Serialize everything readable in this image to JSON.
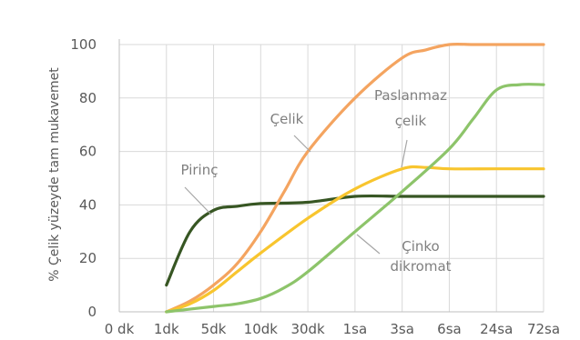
{
  "chart_data": {
    "type": "line",
    "title": "",
    "xlabel": "",
    "ylabel": "% Çelik yüzeyde tam mukavemet",
    "categories": [
      "0 dk",
      "1dk",
      "5dk",
      "10dk",
      "30dk",
      "1sa",
      "3sa",
      "6sa",
      "24sa",
      "72sa"
    ],
    "yticks": [
      "0",
      "20",
      "40",
      "60",
      "80",
      "100"
    ],
    "ylim": [
      0,
      100
    ],
    "grid": true,
    "legend": "none",
    "series": [
      {
        "name": "Pirinç",
        "color": "#375623",
        "points": [
          [
            1,
            10
          ],
          [
            1.5,
            30
          ],
          [
            2,
            38
          ],
          [
            2.5,
            39.5
          ],
          [
            3,
            40.5
          ],
          [
            4,
            41
          ],
          [
            5,
            43.2
          ],
          [
            6,
            43.2
          ],
          [
            7,
            43.2
          ],
          [
            8,
            43.2
          ],
          [
            9,
            43.2
          ]
        ]
      },
      {
        "name": "Çelik",
        "color": "#F4A460",
        "points": [
          [
            1,
            0
          ],
          [
            1.5,
            4
          ],
          [
            2,
            10
          ],
          [
            2.5,
            18
          ],
          [
            3,
            30
          ],
          [
            3.5,
            45
          ],
          [
            4,
            60
          ],
          [
            5,
            80
          ],
          [
            6,
            95
          ],
          [
            6.5,
            98
          ],
          [
            7,
            100
          ],
          [
            7.5,
            100
          ],
          [
            8,
            100
          ],
          [
            9,
            100
          ]
        ]
      },
      {
        "name": "Paslanmaz çelik",
        "color": "#F8C52E",
        "points": [
          [
            1,
            0
          ],
          [
            1.5,
            3
          ],
          [
            2,
            8
          ],
          [
            2.5,
            15
          ],
          [
            3,
            22
          ],
          [
            4,
            35
          ],
          [
            5,
            46
          ],
          [
            6,
            53.5
          ],
          [
            6.5,
            54
          ],
          [
            7,
            53.5
          ],
          [
            8,
            53.5
          ],
          [
            9,
            53.5
          ]
        ]
      },
      {
        "name": "Çinko dikromat",
        "color": "#8DC46A",
        "points": [
          [
            1,
            0
          ],
          [
            2,
            2
          ],
          [
            2.5,
            3
          ],
          [
            3,
            5
          ],
          [
            3.5,
            9
          ],
          [
            4,
            15
          ],
          [
            5,
            30
          ],
          [
            6,
            45
          ],
          [
            7,
            61
          ],
          [
            7.5,
            72
          ],
          [
            8,
            83
          ],
          [
            8.5,
            85
          ],
          [
            9,
            85
          ]
        ]
      }
    ],
    "annotations": [
      {
        "label": "Pirinç",
        "line1": "Pirinç",
        "line2": ""
      },
      {
        "label": "Çelik",
        "line1": "Çelik",
        "line2": ""
      },
      {
        "label": "Paslanmaz çelik",
        "line1": "Paslanmaz",
        "line2": "çelik"
      },
      {
        "label": "Çinko dikromat",
        "line1": "Çinko",
        "line2": "dikromat"
      }
    ]
  }
}
